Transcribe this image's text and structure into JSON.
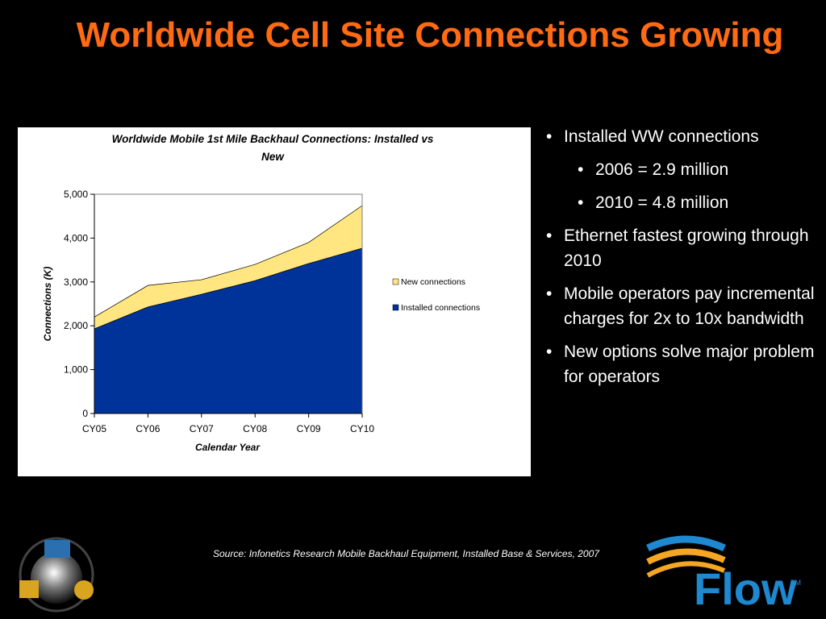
{
  "slide": {
    "title": "Worldwide Cell Site Connections Growing",
    "bullets": [
      {
        "text": "Installed WW connections",
        "level": 1
      },
      {
        "text": "2006 = 2.9 million",
        "level": 2
      },
      {
        "text": "2010 = 4.8 million",
        "level": 2
      },
      {
        "text": "Ethernet fastest growing through 2010",
        "level": 1
      },
      {
        "text": "Mobile operators pay incremental charges for 2x to 10x bandwidth",
        "level": 1
      },
      {
        "text": "New options solve major problem for operators",
        "level": 1
      }
    ],
    "source": "Source: Infonetics Research Mobile Backhaul Equipment, Installed Base & Services, 2007",
    "logo": "Flow",
    "logo_mark": "TM"
  },
  "chart_data": {
    "type": "stacked_area",
    "title": "Worldwide Mobile 1st Mile Backhaul Connections: Installed vs New",
    "xlabel": "Calendar Year",
    "ylabel": "Connections (K)",
    "categories": [
      "CY05",
      "CY06",
      "CY07",
      "CY08",
      "CY09",
      "CY10"
    ],
    "series": [
      {
        "name": "Installed connections",
        "color": "#003399",
        "values": [
          1930,
          2430,
          2720,
          3030,
          3420,
          3770
        ]
      },
      {
        "name": "New connections",
        "color": "#ffe680",
        "values": [
          270,
          490,
          330,
          370,
          480,
          970
        ]
      }
    ],
    "ylim": [
      0,
      5000
    ],
    "yticks": [
      0,
      {
        "value": 1000,
        "label": "1,000"
      },
      {
        "value": 2000,
        "label": "2,000"
      },
      {
        "value": 3000,
        "label": "3,000"
      },
      {
        "value": 4000,
        "label": "4,000"
      },
      {
        "value": 5000,
        "label": "5,000"
      }
    ],
    "legend": "right"
  }
}
